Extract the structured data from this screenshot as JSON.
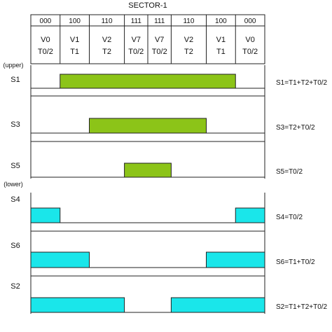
{
  "title": "SECTOR-1",
  "segments": [
    {
      "code": "000",
      "vector": "V0",
      "time": "T0/2",
      "start": 0.0,
      "end": 0.125
    },
    {
      "code": "100",
      "vector": "V1",
      "time": "T1",
      "start": 0.125,
      "end": 0.25
    },
    {
      "code": "110",
      "vector": "V2",
      "time": "T2",
      "start": 0.25,
      "end": 0.4
    },
    {
      "code": "111",
      "vector": "V7",
      "time": "T0/2",
      "start": 0.4,
      "end": 0.5
    },
    {
      "code": "111",
      "vector": "V7",
      "time": "T0/2",
      "start": 0.5,
      "end": 0.6
    },
    {
      "code": "110",
      "vector": "V2",
      "time": "T2",
      "start": 0.6,
      "end": 0.75
    },
    {
      "code": "100",
      "vector": "V1",
      "time": "T1",
      "start": 0.75,
      "end": 0.875
    },
    {
      "code": "000",
      "vector": "V0",
      "time": "T0/2",
      "start": 0.875,
      "end": 1.0
    }
  ],
  "group_labels": {
    "upper": "(upper)",
    "lower": "(lower)"
  },
  "colors": {
    "upper_pulse": "#8cc418",
    "lower_pulse": "#1ae6ea",
    "line": "#222222"
  },
  "switches": [
    {
      "name": "S1",
      "group": "upper",
      "on": [
        [
          0.125,
          0.875
        ]
      ],
      "equation": "S1=T1+T2+T0/2"
    },
    {
      "name": "S3",
      "group": "upper",
      "on": [
        [
          0.25,
          0.75
        ]
      ],
      "equation": "S3=T2+T0/2"
    },
    {
      "name": "S5",
      "group": "upper",
      "on": [
        [
          0.4,
          0.6
        ]
      ],
      "equation": "S5=T0/2"
    },
    {
      "name": "S4",
      "group": "lower",
      "on": [
        [
          0.0,
          0.125
        ],
        [
          0.875,
          1.0
        ]
      ],
      "equation": "S4=T0/2"
    },
    {
      "name": "S6",
      "group": "lower",
      "on": [
        [
          0.0,
          0.25
        ],
        [
          0.75,
          1.0
        ]
      ],
      "equation": "S6=T1+T0/2"
    },
    {
      "name": "S2",
      "group": "lower",
      "on": [
        [
          0.0,
          0.4
        ],
        [
          0.6,
          1.0
        ]
      ],
      "equation": "S2=T1+T2+T0/2"
    }
  ]
}
